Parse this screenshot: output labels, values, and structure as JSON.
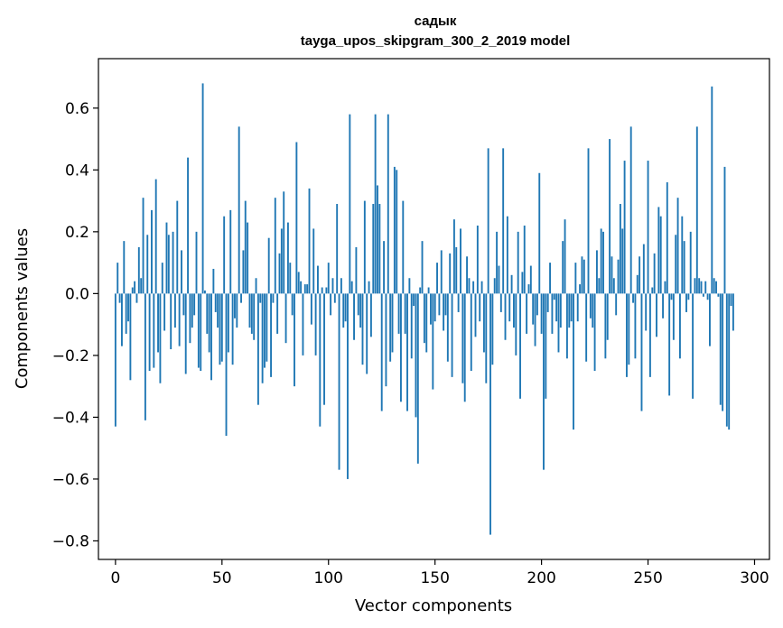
{
  "chart_data": {
    "type": "bar",
    "title": "садык",
    "subtitle": "tayga_upos_skipgram_300_2_2019 model",
    "xlabel": "Vector components",
    "ylabel": "Components values",
    "xlim": [
      -8,
      307
    ],
    "ylim": [
      -0.86,
      0.76
    ],
    "xticks": [
      0,
      50,
      100,
      150,
      200,
      250,
      300
    ],
    "yticks": [
      -0.8,
      -0.6,
      -0.4,
      -0.2,
      0.0,
      0.2,
      0.4,
      0.6
    ],
    "xtick_labels": [
      "0",
      "50",
      "100",
      "150",
      "200",
      "250",
      "300"
    ],
    "ytick_labels": [
      "−0.8",
      "−0.6",
      "−0.4",
      "−0.2",
      "0.0",
      "0.2",
      "0.4",
      "0.6"
    ],
    "bar_color": "#1f77b4",
    "values": [
      -0.43,
      0.1,
      -0.03,
      -0.17,
      0.17,
      -0.13,
      -0.09,
      -0.28,
      0.02,
      0.04,
      -0.03,
      0.15,
      0.05,
      0.31,
      -0.41,
      0.19,
      -0.25,
      0.27,
      -0.24,
      0.37,
      -0.19,
      -0.29,
      0.1,
      -0.12,
      0.23,
      0.19,
      -0.18,
      0.2,
      -0.11,
      0.3,
      -0.17,
      0.14,
      -0.07,
      -0.26,
      0.44,
      -0.16,
      -0.11,
      -0.07,
      0.2,
      -0.24,
      -0.25,
      0.68,
      0.01,
      -0.13,
      -0.19,
      -0.28,
      0.08,
      -0.06,
      -0.11,
      -0.23,
      -0.22,
      0.25,
      -0.46,
      -0.19,
      0.27,
      -0.23,
      -0.08,
      -0.11,
      0.54,
      -0.03,
      0.14,
      0.3,
      0.23,
      -0.11,
      -0.13,
      -0.15,
      0.05,
      -0.36,
      -0.03,
      -0.29,
      -0.24,
      -0.22,
      0.18,
      -0.27,
      -0.03,
      0.31,
      -0.13,
      0.13,
      0.21,
      0.33,
      -0.16,
      0.23,
      0.1,
      -0.07,
      -0.3,
      0.49,
      0.07,
      0.04,
      -0.2,
      0.03,
      0.03,
      0.34,
      -0.1,
      0.21,
      -0.2,
      0.09,
      -0.43,
      0.02,
      -0.36,
      0.02,
      0.1,
      -0.07,
      0.05,
      -0.03,
      0.29,
      -0.57,
      0.05,
      -0.11,
      -0.09,
      -0.6,
      0.58,
      0.04,
      -0.15,
      0.15,
      -0.07,
      -0.11,
      -0.23,
      0.3,
      -0.26,
      0.04,
      -0.14,
      0.29,
      0.58,
      0.35,
      0.29,
      -0.38,
      0.17,
      -0.3,
      0.58,
      -0.22,
      -0.19,
      0.41,
      0.4,
      -0.13,
      -0.35,
      0.3,
      -0.13,
      -0.38,
      0.05,
      -0.21,
      -0.04,
      -0.4,
      -0.55,
      0.02,
      0.17,
      -0.16,
      -0.19,
      0.02,
      -0.1,
      -0.31,
      -0.09,
      0.1,
      -0.07,
      0.14,
      -0.12,
      -0.07,
      -0.22,
      0.13,
      -0.27,
      0.24,
      0.15,
      -0.06,
      0.21,
      -0.29,
      -0.35,
      0.12,
      0.05,
      -0.25,
      0.04,
      -0.14,
      0.22,
      -0.09,
      0.04,
      -0.19,
      -0.29,
      0.47,
      -0.78,
      -0.23,
      0.05,
      0.2,
      0.09,
      -0.06,
      0.47,
      -0.15,
      0.25,
      -0.09,
      0.06,
      -0.11,
      -0.2,
      0.2,
      -0.34,
      0.07,
      0.22,
      -0.13,
      0.03,
      0.09,
      -0.1,
      -0.17,
      -0.07,
      0.39,
      -0.13,
      -0.57,
      -0.34,
      -0.06,
      0.1,
      -0.13,
      -0.02,
      -0.09,
      -0.19,
      -0.11,
      0.17,
      0.24,
      -0.21,
      -0.11,
      -0.09,
      -0.44,
      0.1,
      -0.09,
      0.03,
      0.12,
      0.11,
      -0.22,
      0.47,
      -0.08,
      -0.11,
      -0.25,
      0.14,
      0.05,
      0.21,
      0.2,
      -0.21,
      -0.15,
      0.5,
      0.12,
      0.05,
      -0.07,
      0.11,
      0.29,
      0.21,
      0.43,
      -0.27,
      -0.23,
      0.54,
      -0.03,
      -0.21,
      0.06,
      0.12,
      -0.38,
      0.16,
      -0.12,
      0.43,
      -0.27,
      0.02,
      0.13,
      -0.14,
      0.28,
      0.25,
      -0.08,
      0.04,
      0.36,
      -0.33,
      -0.02,
      -0.15,
      0.19,
      0.31,
      -0.21,
      0.25,
      0.17,
      -0.06,
      -0.02,
      0.2,
      -0.34,
      0.05,
      0.54,
      0.05,
      0.04,
      -0.01,
      0.04,
      -0.02,
      -0.17,
      0.67,
      0.05,
      0.04,
      -0.01,
      -0.36,
      -0.38,
      0.41,
      -0.43,
      -0.44,
      -0.04,
      -0.12
    ]
  }
}
